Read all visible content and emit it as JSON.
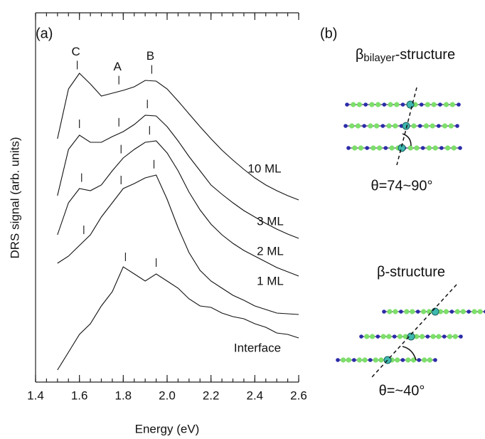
{
  "chart_data": {
    "type": "line",
    "panel_label": "(a)",
    "x_label": "Energy (eV)",
    "y_label": "DRS signal (arb. units)",
    "x": [
      1.5,
      1.55,
      1.6,
      1.65,
      1.7,
      1.75,
      1.8,
      1.85,
      1.9,
      1.95,
      2.0,
      2.05,
      2.1,
      2.15,
      2.2,
      2.25,
      2.3,
      2.35,
      2.4,
      2.45,
      2.5,
      2.55,
      2.6
    ],
    "series": [
      {
        "name": "10 ML",
        "color": "#111111",
        "values": [
          342,
          412,
          434,
          419,
          402,
          406,
          410,
          415,
          424,
          423,
          412,
          395,
          377,
          359,
          342,
          326,
          312,
          299,
          287,
          277,
          269,
          262,
          256
        ],
        "peaks": [
          1.59,
          1.78,
          1.93
        ],
        "peak_labels": [
          "C",
          "A",
          "B"
        ]
      },
      {
        "name": "3 ML",
        "color": "#111111",
        "values": [
          262,
          327,
          347,
          337,
          337,
          345,
          352,
          362,
          375,
          374,
          359,
          339,
          317,
          297,
          277,
          264,
          252,
          241,
          232,
          223,
          215,
          208,
          202
        ],
        "peaks": [
          1.6,
          1.78,
          1.91
        ]
      },
      {
        "name": "2 ML",
        "color": "#111111",
        "values": [
          207,
          252,
          272,
          269,
          277,
          297,
          315,
          327,
          337,
          339,
          322,
          297,
          267,
          242,
          222,
          207,
          195,
          185,
          177,
          169,
          161,
          155,
          149
        ],
        "peaks": [
          1.61,
          1.79,
          1.92
        ]
      },
      {
        "name": "1 ML",
        "color": "#111111",
        "values": [
          167,
          177,
          192,
          207,
          232,
          252,
          272,
          279,
          287,
          291,
          257,
          217,
          182,
          157,
          142,
          132,
          122,
          115,
          107,
          102,
          97,
          96,
          95
        ],
        "peaks": [
          1.62,
          1.79,
          1.94
        ]
      },
      {
        "name": "Interface",
        "color": "#111111",
        "values": [
          17,
          42,
          67,
          82,
          107,
          127,
          162,
          152,
          142,
          152,
          142,
          132,
          117,
          107,
          105,
          97,
          92,
          89,
          82,
          77,
          69,
          67,
          62
        ],
        "peaks": [
          1.81,
          1.95
        ]
      }
    ],
    "xlim": [
      1.4,
      2.6
    ],
    "xticks": [
      1.4,
      1.6,
      1.8,
      {
        "value": 2,
        "label": "2.0"
      },
      2.2,
      2.4,
      2.6
    ],
    "xminor_step": 0.05,
    "ylim": [
      0,
      519
    ]
  },
  "panel_b": {
    "panel_label": "(b)",
    "top": {
      "symbol": "β",
      "subscript": "bilayer",
      "rest": "-structure",
      "angle": "θ=74~90°"
    },
    "bottom": {
      "title": "β-structure",
      "angle": "θ=~40°"
    }
  }
}
